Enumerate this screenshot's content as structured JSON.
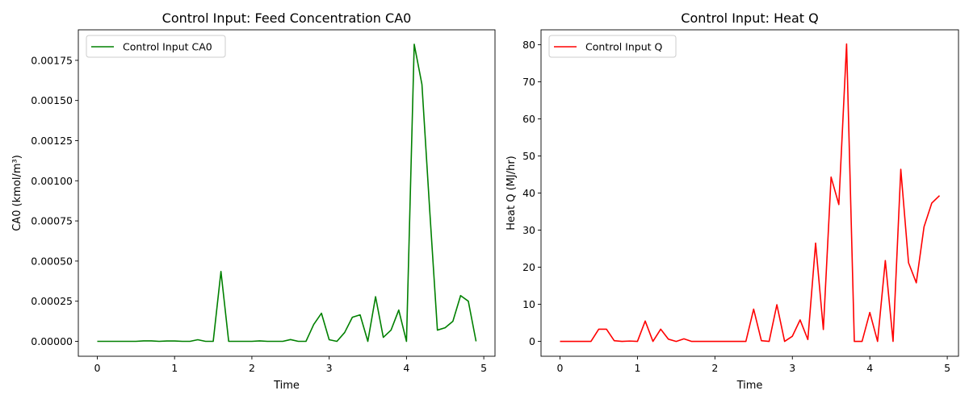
{
  "chart_data": [
    {
      "type": "line",
      "title": "Control Input: Feed Concentration CA0",
      "xlabel": "Time",
      "ylabel": "CA0 (kmol/m³)",
      "xlim": [
        -0.245,
        5.145
      ],
      "ylim": [
        -9.28e-05,
        0.00194
      ],
      "xticks": [
        0,
        1,
        2,
        3,
        4,
        5
      ],
      "xtick_labels": [
        "0",
        "1",
        "2",
        "3",
        "4",
        "5"
      ],
      "yticks": [
        0,
        0.00025,
        0.0005,
        0.00075,
        0.001,
        0.00125,
        0.0015,
        0.00175
      ],
      "ytick_labels": [
        "0.00000",
        "0.00025",
        "0.00050",
        "0.00075",
        "0.00100",
        "0.00125",
        "0.00150",
        "0.00175"
      ],
      "grid": false,
      "legend": "top-left",
      "series": [
        {
          "name": "Control Input CA0",
          "color": "#008000",
          "x": [
            0,
            0.1,
            0.2,
            0.3,
            0.4,
            0.5,
            0.6,
            0.7,
            0.8,
            0.9,
            1.0,
            1.1,
            1.2,
            1.3,
            1.4,
            1.5,
            1.6,
            1.7,
            1.8,
            1.9,
            2.0,
            2.1,
            2.2,
            2.3,
            2.4,
            2.5,
            2.6,
            2.7,
            2.8,
            2.9,
            3.0,
            3.1,
            3.2,
            3.3,
            3.4,
            3.5,
            3.6,
            3.7,
            3.8,
            3.9,
            4.0,
            4.1,
            4.2,
            4.3,
            4.4,
            4.5,
            4.6,
            4.7,
            4.8,
            4.9
          ],
          "y": [
            0,
            0,
            0,
            0,
            0,
            0,
            3e-06,
            3e-06,
            0,
            2e-06,
            2e-06,
            0,
            0,
            1e-05,
            0,
            0,
            0.000435,
            0,
            0,
            0,
            0,
            3e-06,
            0,
            0,
            0,
            1.1e-05,
            0,
            0,
            0.000105,
            0.000175,
            1e-05,
            0,
            5.5e-05,
            0.00015,
            0.000165,
            0,
            0.000278,
            2.5e-05,
            7e-05,
            0.000195,
            0,
            0.00185,
            0.0016,
            0.00082,
            7e-05,
            8.5e-05,
            0.000125,
            0.000285,
            0.00025,
            0
          ]
        }
      ]
    },
    {
      "type": "line",
      "title": "Control Input: Heat Q",
      "xlabel": "Time",
      "ylabel": "Heat Q (MJ/hr)",
      "xlim": [
        -0.245,
        5.145
      ],
      "ylim": [
        -4.0,
        84.0
      ],
      "xticks": [
        0,
        1,
        2,
        3,
        4,
        5
      ],
      "xtick_labels": [
        "0",
        "1",
        "2",
        "3",
        "4",
        "5"
      ],
      "yticks": [
        0,
        10,
        20,
        30,
        40,
        50,
        60,
        70,
        80
      ],
      "ytick_labels": [
        "0",
        "10",
        "20",
        "30",
        "40",
        "50",
        "60",
        "70",
        "80"
      ],
      "grid": false,
      "legend": "top-left",
      "series": [
        {
          "name": "Control Input Q",
          "color": "#ff0000",
          "x": [
            0,
            0.1,
            0.2,
            0.3,
            0.4,
            0.5,
            0.6,
            0.7,
            0.8,
            0.9,
            1.0,
            1.1,
            1.2,
            1.3,
            1.4,
            1.5,
            1.6,
            1.7,
            1.8,
            1.9,
            2.0,
            2.1,
            2.2,
            2.3,
            2.4,
            2.5,
            2.6,
            2.7,
            2.8,
            2.9,
            3.0,
            3.1,
            3.2,
            3.3,
            3.4,
            3.5,
            3.6,
            3.7,
            3.8,
            3.9,
            4.0,
            4.1,
            4.2,
            4.3,
            4.4,
            4.5,
            4.6,
            4.7,
            4.8,
            4.9
          ],
          "y": [
            0,
            0,
            0,
            0,
            0,
            3.3,
            3.3,
            0.2,
            0,
            0.1,
            0,
            5.5,
            0,
            3.3,
            0.6,
            0,
            0.7,
            0,
            0,
            0,
            0,
            0,
            0,
            0,
            0,
            8.7,
            0.2,
            0,
            9.9,
            0,
            1.4,
            5.8,
            0.5,
            26.5,
            3.2,
            44.3,
            36.9,
            80.2,
            0,
            0,
            7.8,
            0,
            21.8,
            0,
            46.4,
            21.2,
            15.8,
            30.9,
            37.3,
            39.3
          ]
        }
      ]
    }
  ]
}
